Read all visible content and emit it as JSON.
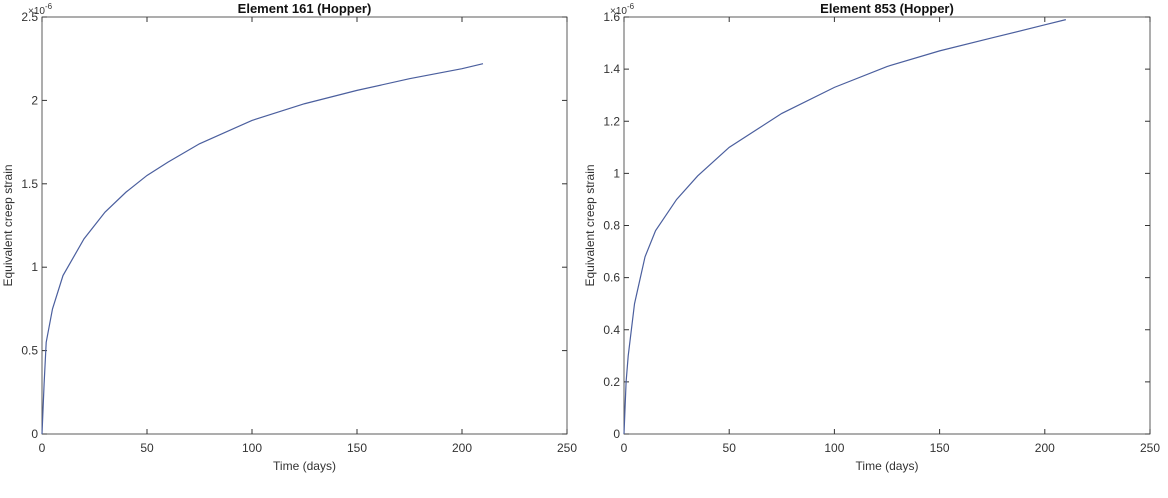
{
  "chart_data": [
    {
      "type": "line",
      "title": "Element 161 (Hopper)",
      "xlabel": "Time (days)",
      "ylabel": "Equivalent creep strain",
      "y_multiplier": {
        "base": "×10",
        "exponent": "-6"
      },
      "x": [
        0,
        1,
        2,
        5,
        10,
        20,
        30,
        40,
        50,
        60,
        75,
        100,
        125,
        150,
        175,
        200,
        210
      ],
      "series": [
        {
          "color": "#4b5f9e",
          "values": [
            0,
            0.3,
            0.55,
            0.75,
            0.95,
            1.17,
            1.33,
            1.45,
            1.55,
            1.63,
            1.74,
            1.88,
            1.98,
            2.06,
            2.13,
            2.19,
            2.22
          ]
        }
      ],
      "xlim": [
        0,
        250
      ],
      "xticks": [
        0,
        50,
        100,
        150,
        200,
        250
      ],
      "ylim": [
        0,
        2.5
      ],
      "yticks": [
        0,
        0.5,
        1,
        1.5,
        2,
        2.5
      ]
    },
    {
      "type": "line",
      "title": "Element 853 (Hopper)",
      "xlabel": "Time (days)",
      "ylabel": "Equivalent creep strain",
      "y_multiplier": {
        "base": "×10",
        "exponent": "-6"
      },
      "x": [
        0,
        1,
        2,
        5,
        10,
        15,
        25,
        35,
        50,
        75,
        100,
        125,
        150,
        175,
        200,
        210
      ],
      "series": [
        {
          "color": "#4b5f9e",
          "values": [
            0,
            0.2,
            0.3,
            0.5,
            0.68,
            0.78,
            0.9,
            0.99,
            1.1,
            1.23,
            1.33,
            1.41,
            1.47,
            1.52,
            1.57,
            1.59
          ]
        }
      ],
      "xlim": [
        0,
        250
      ],
      "xticks": [
        0,
        50,
        100,
        150,
        200,
        250
      ],
      "ylim": [
        0,
        1.6
      ],
      "yticks": [
        0,
        0.2,
        0.4,
        0.6,
        0.8,
        1,
        1.2,
        1.4,
        1.6
      ]
    }
  ]
}
